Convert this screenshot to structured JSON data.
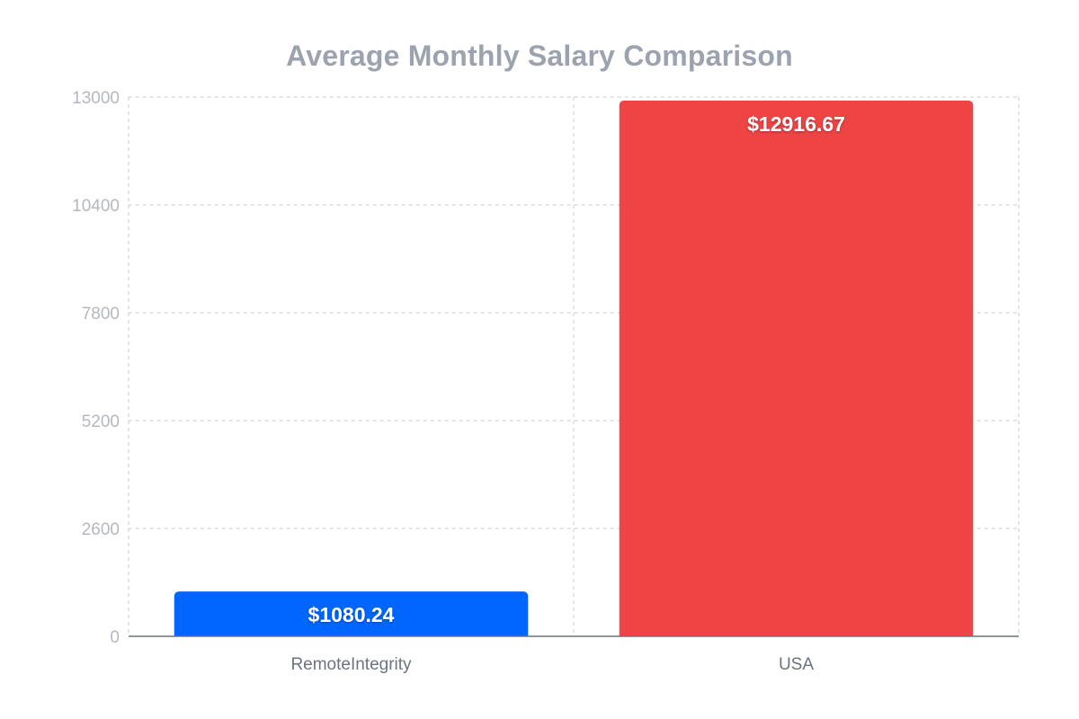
{
  "chart_data": {
    "type": "bar",
    "title": "Average Monthly Salary Comparison",
    "categories": [
      "RemoteIntegrity",
      "USA"
    ],
    "values": [
      1080.24,
      12916.67
    ],
    "data_labels": [
      "$1080.24",
      "$12916.67"
    ],
    "colors": [
      "#0066ff",
      "#ef4444"
    ],
    "ylim": [
      0,
      13000
    ],
    "yticks": [
      0,
      2600,
      5200,
      7800,
      10400,
      13000
    ],
    "grid": true,
    "grid_style": "dashed",
    "legend": "none"
  }
}
